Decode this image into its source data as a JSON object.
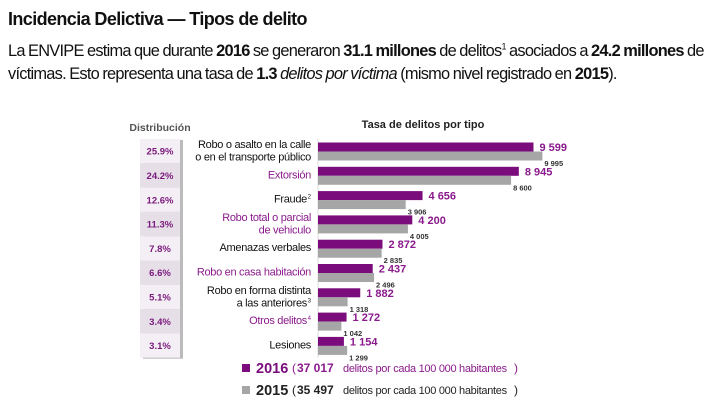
{
  "title": "Incidencia Delictiva — Tipos de  delito",
  "paragraph": [
    {
      "t": "La ENVIPE estima que durante ",
      "s": ""
    },
    {
      "t": "2016",
      "s": "b"
    },
    {
      "t": " se generaron ",
      "s": ""
    },
    {
      "t": "31.1 millones",
      "s": "b"
    },
    {
      "t": " de delitos",
      "s": ""
    },
    {
      "t": "1",
      "s": "sup"
    },
    {
      "t": " asociados a ",
      "s": ""
    },
    {
      "t": "24.2 millones",
      "s": "b"
    },
    {
      "t": " de víctimas. Esto representa una tasa de ",
      "s": ""
    },
    {
      "t": "1.3",
      "s": "b"
    },
    {
      "t": " ",
      "s": ""
    },
    {
      "t": "delitos por víctima",
      "s": "i"
    },
    {
      "t": " (mismo nivel registrado en ",
      "s": ""
    },
    {
      "t": "2015",
      "s": "b"
    },
    {
      "t": ").",
      "s": ""
    }
  ],
  "chart_data": {
    "type": "bar",
    "orientation": "horizontal",
    "title": "Tasa de delitos por tipo",
    "distribution_title": "Distribución",
    "categories": [
      {
        "label": [
          "Robo o asalto en la calle",
          "o en el transporte público"
        ],
        "sup": "",
        "highlight": false
      },
      {
        "label": [
          "Extorsión"
        ],
        "sup": "",
        "highlight": true
      },
      {
        "label": [
          "Fraude"
        ],
        "sup": "2",
        "highlight": false
      },
      {
        "label": [
          "Robo total o parcial",
          "de vehiculo"
        ],
        "sup": "",
        "highlight": true
      },
      {
        "label": [
          "Amenazas verbales"
        ],
        "sup": "",
        "highlight": false
      },
      {
        "label": [
          "Robo en casa habitación"
        ],
        "sup": "",
        "highlight": true
      },
      {
        "label": [
          "Robo en forma distinta",
          "a las anteriores"
        ],
        "sup": "3",
        "highlight": false
      },
      {
        "label": [
          "Otros delitos"
        ],
        "sup": "4",
        "highlight": true
      },
      {
        "label": [
          "Lesiones"
        ],
        "sup": "",
        "highlight": false
      }
    ],
    "distribution": [
      "25.9%",
      "24.2%",
      "12.6%",
      "11.3%",
      "7.8%",
      "6.6%",
      "5.1%",
      "3.4%",
      "3.1%"
    ],
    "series": [
      {
        "name": "2016",
        "total": "37 017",
        "note": "delitos por cada 100 000 habitantes",
        "color": "#7a0c7c",
        "values": [
          9599,
          8945,
          4656,
          4200,
          2872,
          2437,
          1882,
          1272,
          1154
        ],
        "labels": [
          "9 599",
          "8 945",
          "4 656",
          "4 200",
          "2 872",
          "2 437",
          "1 882",
          "1 272",
          "1 154"
        ]
      },
      {
        "name": "2015",
        "total": "35 497",
        "note": "delitos por cada 100 000 habitantes",
        "color": "#a6a6a6",
        "values": [
          9995,
          8600,
          3906,
          4005,
          2835,
          2496,
          1318,
          1042,
          1299
        ],
        "labels": [
          "9 995",
          "8 600",
          "3 906",
          "4 005",
          "2 835",
          "2 496",
          "1 318",
          "1 042",
          "1 299"
        ]
      }
    ],
    "legend_position": "bottom",
    "grid": false,
    "label_color_highlight": "#8a1a8c",
    "distribution_box_colors": [
      "#f4eef5",
      "#e6dfe8"
    ]
  }
}
